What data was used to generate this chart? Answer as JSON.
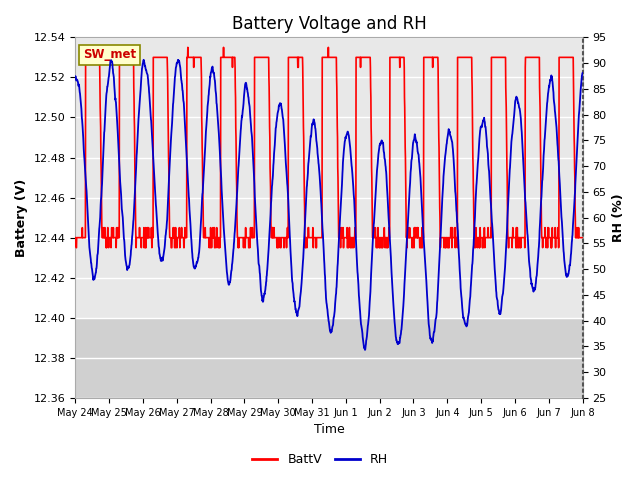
{
  "title": "Battery Voltage and RH",
  "xlabel": "Time",
  "ylabel_left": "Battery (V)",
  "ylabel_right": "RH (%)",
  "xlim": [
    0,
    15
  ],
  "ylim_left": [
    12.36,
    12.54
  ],
  "ylim_right": [
    25,
    95
  ],
  "yticks_left": [
    12.36,
    12.38,
    12.4,
    12.42,
    12.44,
    12.46,
    12.48,
    12.5,
    12.52,
    12.54
  ],
  "yticks_right": [
    25,
    30,
    35,
    40,
    45,
    50,
    55,
    60,
    65,
    70,
    75,
    80,
    85,
    90,
    95
  ],
  "xtick_labels": [
    "May 24",
    "May 25",
    "May 26",
    "May 27",
    "May 28",
    "May 29",
    "May 30",
    "May 31",
    "Jun 1",
    "Jun 2",
    "Jun 3",
    "Jun 4",
    "Jun 5",
    "Jun 6",
    "Jun 7",
    "Jun 8"
  ],
  "station_label": "SW_met",
  "batt_color": "#ff0000",
  "rh_color": "#0000cc",
  "legend_items": [
    "BattV",
    "RH"
  ],
  "bg_color": "#ffffff",
  "plot_bg_light": "#e8e8e8",
  "plot_bg_dark": "#d0d0d0",
  "grid_color": "#ffffff",
  "title_fontsize": 12,
  "label_fontsize": 9,
  "tick_fontsize": 8
}
